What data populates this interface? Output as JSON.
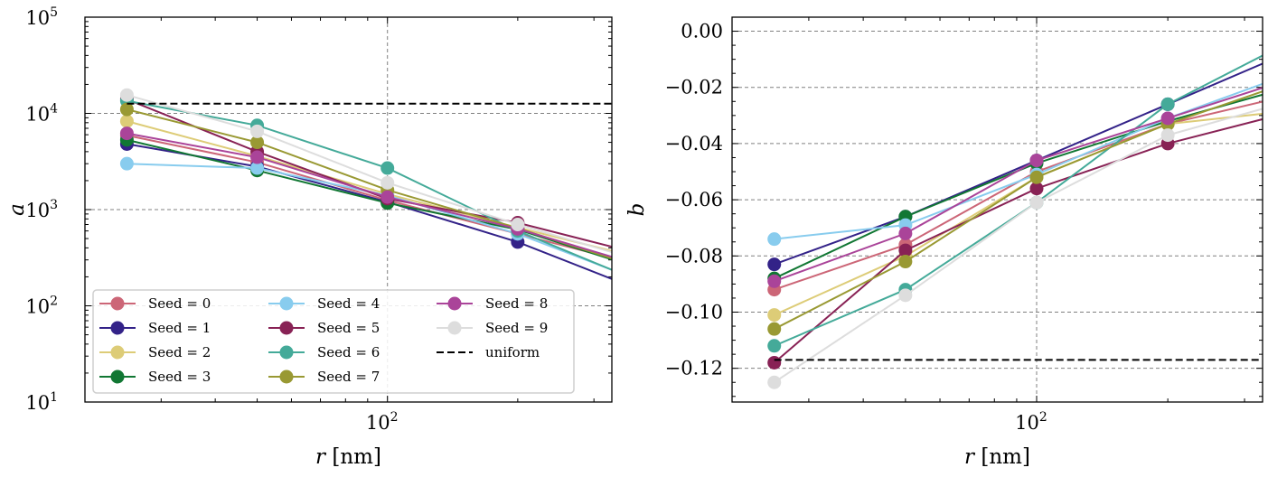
{
  "chart_data": [
    {
      "type": "line",
      "xscale": "log",
      "yscale": "log",
      "xlabel": "r [nm]",
      "ylabel": "a",
      "xlim": [
        20,
        330
      ],
      "ylim": [
        10,
        100000
      ],
      "x": [
        25,
        50,
        100,
        200,
        400
      ],
      "xtick_labels": [
        {
          "base": "10",
          "exp": "2",
          "value": 100
        }
      ],
      "ytick_labels": [
        {
          "base": "10",
          "exp": "1",
          "value": 10
        },
        {
          "base": "10",
          "exp": "2",
          "value": 100
        },
        {
          "base": "10",
          "exp": "3",
          "value": 1000
        },
        {
          "base": "10",
          "exp": "4",
          "value": 10000
        },
        {
          "base": "10",
          "exp": "5",
          "value": 100000
        }
      ],
      "grid": true,
      "legend": {
        "position": "lower-left",
        "columns": 3
      },
      "series": [
        {
          "name": "Seed = 0",
          "color": "#CC6677",
          "values": [
            5900,
            3100,
            1250,
            560,
            250
          ]
        },
        {
          "name": "Seed = 1",
          "color": "#332288",
          "values": [
            4800,
            2800,
            1200,
            460,
            135
          ]
        },
        {
          "name": "Seed = 2",
          "color": "#DDCC77",
          "values": [
            8300,
            3600,
            1450,
            650,
            300
          ]
        },
        {
          "name": "Seed = 3",
          "color": "#117733",
          "values": [
            5300,
            2550,
            1170,
            620,
            230
          ]
        },
        {
          "name": "Seed = 4",
          "color": "#88CCEE",
          "values": [
            3000,
            2700,
            1400,
            560,
            170
          ]
        },
        {
          "name": "Seed = 5",
          "color": "#882255",
          "values": [
            14000,
            4000,
            1300,
            730,
            330
          ]
        },
        {
          "name": "Seed = 6",
          "color": "#44AA99",
          "values": [
            13500,
            7500,
            2700,
            600,
            165
          ]
        },
        {
          "name": "Seed = 7",
          "color": "#999933",
          "values": [
            11000,
            5000,
            1600,
            640,
            235
          ]
        },
        {
          "name": "Seed = 8",
          "color": "#AA4499",
          "values": [
            6200,
            3500,
            1350,
            630,
            250
          ]
        },
        {
          "name": "Seed = 9",
          "color": "#DDDDDD",
          "values": [
            15500,
            6500,
            1900,
            700,
            280
          ]
        },
        {
          "name": "uniform",
          "color": "#000000",
          "dashed": true,
          "x": [
            25,
            400
          ],
          "values": [
            12600,
            12600
          ]
        }
      ]
    },
    {
      "type": "line",
      "xscale": "log",
      "yscale": "linear",
      "xlabel": "r [nm]",
      "ylabel": "b",
      "xlim": [
        20,
        330
      ],
      "ylim": [
        -0.132,
        0.005
      ],
      "x": [
        25,
        50,
        100,
        200,
        400
      ],
      "xtick_labels": [
        {
          "base": "10",
          "exp": "2",
          "value": 100
        }
      ],
      "ytick_labels": [
        "0.00",
        "−0.02",
        "−0.04",
        "−0.06",
        "−0.08",
        "−0.10",
        "−0.12"
      ],
      "yticks": [
        0,
        -0.02,
        -0.04,
        -0.06,
        -0.08,
        -0.1,
        -0.12
      ],
      "grid": true,
      "series": [
        {
          "name": "Seed = 0",
          "color": "#CC6677",
          "values": [
            -0.092,
            -0.076,
            -0.05,
            -0.033,
            -0.022
          ]
        },
        {
          "name": "Seed = 1",
          "color": "#332288",
          "values": [
            -0.083,
            -0.066,
            -0.046,
            -0.026,
            -0.006
          ]
        },
        {
          "name": "Seed = 2",
          "color": "#DDCC77",
          "values": [
            -0.101,
            -0.08,
            -0.052,
            -0.033,
            -0.028
          ]
        },
        {
          "name": "Seed = 3",
          "color": "#117733",
          "values": [
            -0.088,
            -0.066,
            -0.047,
            -0.032,
            -0.019
          ]
        },
        {
          "name": "Seed = 4",
          "color": "#88CCEE",
          "values": [
            -0.074,
            -0.069,
            -0.051,
            -0.031,
            -0.014
          ]
        },
        {
          "name": "Seed = 5",
          "color": "#882255",
          "values": [
            -0.118,
            -0.078,
            -0.056,
            -0.04,
            -0.028
          ]
        },
        {
          "name": "Seed = 6",
          "color": "#44AA99",
          "values": [
            -0.112,
            -0.092,
            -0.061,
            -0.026,
            -0.002
          ]
        },
        {
          "name": "Seed = 7",
          "color": "#999933",
          "values": [
            -0.106,
            -0.082,
            -0.052,
            -0.033,
            -0.017
          ]
        },
        {
          "name": "Seed = 8",
          "color": "#AA4499",
          "values": [
            -0.089,
            -0.072,
            -0.046,
            -0.031,
            -0.016
          ]
        },
        {
          "name": "Seed = 9",
          "color": "#DDDDDD",
          "values": [
            -0.125,
            -0.094,
            -0.061,
            -0.037,
            -0.024
          ]
        },
        {
          "name": "uniform",
          "color": "#000000",
          "dashed": true,
          "x": [
            25,
            400
          ],
          "values": [
            -0.117,
            -0.117
          ]
        }
      ]
    }
  ]
}
